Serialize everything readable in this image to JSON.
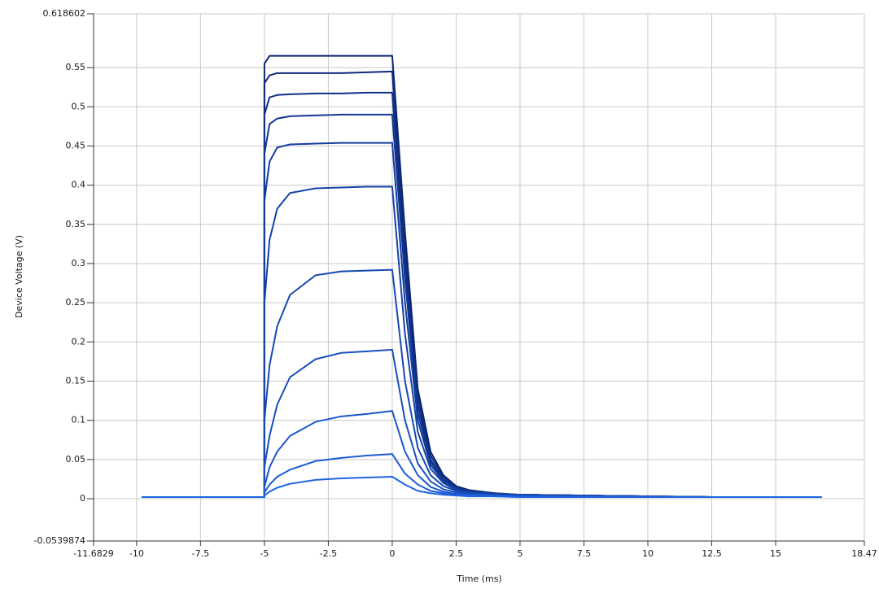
{
  "chart_data": {
    "type": "line",
    "x_label": "Time (ms)",
    "y_label": "Device Voltage (V)",
    "xlim": [
      -11.6829,
      18.47
    ],
    "ylim": [
      -0.0539874,
      0.618602
    ],
    "xticks": [
      -11.6829,
      -10,
      -7.5,
      -5,
      -2.5,
      0,
      2.5,
      5,
      7.5,
      10,
      12.5,
      15,
      18.47
    ],
    "yticks": [
      -0.0539874,
      0,
      0.05,
      0.1,
      0.15,
      0.2,
      0.25,
      0.3,
      0.35,
      0.4,
      0.45,
      0.5,
      0.55,
      0.618602
    ],
    "grid": true,
    "x": [
      -9.8,
      -5,
      -5,
      -4.8,
      -4.5,
      -4,
      -3,
      -2,
      -1,
      0,
      0.5,
      1,
      1.5,
      2,
      2.5,
      3,
      4,
      5,
      7.5,
      10,
      12.5,
      15,
      16.8
    ],
    "series": [
      {
        "color": "#0b2470",
        "values": [
          0.002,
          0.002,
          0.555,
          0.565,
          0.565,
          0.565,
          0.565,
          0.565,
          0.565,
          0.565,
          0.34,
          0.14,
          0.06,
          0.03,
          0.016,
          0.011,
          0.007,
          0.005,
          0.004,
          0.003,
          0.002,
          0.002,
          0.002
        ]
      },
      {
        "color": "#0d2a7c",
        "values": [
          0.002,
          0.002,
          0.53,
          0.54,
          0.543,
          0.543,
          0.543,
          0.543,
          0.544,
          0.545,
          0.32,
          0.13,
          0.055,
          0.028,
          0.015,
          0.01,
          0.007,
          0.005,
          0.004,
          0.003,
          0.002,
          0.002,
          0.002
        ]
      },
      {
        "color": "#0f3087",
        "values": [
          0.002,
          0.002,
          0.49,
          0.512,
          0.515,
          0.516,
          0.517,
          0.517,
          0.518,
          0.518,
          0.3,
          0.12,
          0.05,
          0.025,
          0.014,
          0.01,
          0.006,
          0.005,
          0.004,
          0.003,
          0.002,
          0.002,
          0.002
        ]
      },
      {
        "color": "#113692",
        "values": [
          0.002,
          0.002,
          0.44,
          0.478,
          0.485,
          0.488,
          0.489,
          0.49,
          0.49,
          0.49,
          0.28,
          0.11,
          0.047,
          0.024,
          0.013,
          0.009,
          0.006,
          0.005,
          0.004,
          0.003,
          0.002,
          0.002,
          0.002
        ]
      },
      {
        "color": "#133c9d",
        "values": [
          0.002,
          0.002,
          0.38,
          0.43,
          0.448,
          0.452,
          0.453,
          0.454,
          0.454,
          0.454,
          0.25,
          0.1,
          0.043,
          0.022,
          0.012,
          0.009,
          0.006,
          0.005,
          0.004,
          0.003,
          0.002,
          0.002,
          0.002
        ]
      },
      {
        "color": "#1543a9",
        "values": [
          0.002,
          0.002,
          0.25,
          0.33,
          0.37,
          0.39,
          0.396,
          0.397,
          0.398,
          0.398,
          0.21,
          0.085,
          0.038,
          0.02,
          0.011,
          0.008,
          0.006,
          0.005,
          0.004,
          0.003,
          0.002,
          0.002,
          0.002
        ]
      },
      {
        "color": "#1749b4",
        "values": [
          0.002,
          0.002,
          0.1,
          0.17,
          0.22,
          0.26,
          0.285,
          0.29,
          0.291,
          0.292,
          0.15,
          0.065,
          0.03,
          0.016,
          0.01,
          0.007,
          0.005,
          0.004,
          0.003,
          0.003,
          0.002,
          0.002,
          0.002
        ]
      },
      {
        "color": "#194fbf",
        "values": [
          0.002,
          0.002,
          0.04,
          0.08,
          0.12,
          0.155,
          0.178,
          0.186,
          0.188,
          0.19,
          0.1,
          0.045,
          0.022,
          0.012,
          0.008,
          0.006,
          0.004,
          0.004,
          0.003,
          0.002,
          0.002,
          0.002,
          0.002
        ]
      },
      {
        "color": "#1b56cb",
        "values": [
          0.002,
          0.002,
          0.015,
          0.04,
          0.06,
          0.08,
          0.098,
          0.105,
          0.108,
          0.112,
          0.06,
          0.03,
          0.015,
          0.009,
          0.006,
          0.005,
          0.004,
          0.003,
          0.003,
          0.002,
          0.002,
          0.002,
          0.002
        ]
      },
      {
        "color": "#1d5cd6",
        "values": [
          0.002,
          0.002,
          0.008,
          0.018,
          0.028,
          0.037,
          0.048,
          0.052,
          0.055,
          0.057,
          0.032,
          0.018,
          0.01,
          0.007,
          0.005,
          0.004,
          0.003,
          0.003,
          0.002,
          0.002,
          0.002,
          0.002,
          0.002
        ]
      },
      {
        "color": "#1f63e0",
        "values": [
          0.002,
          0.002,
          0.004,
          0.009,
          0.014,
          0.019,
          0.024,
          0.026,
          0.027,
          0.028,
          0.018,
          0.01,
          0.007,
          0.005,
          0.004,
          0.003,
          0.003,
          0.002,
          0.002,
          0.002,
          0.002,
          0.002,
          0.002
        ]
      }
    ]
  }
}
